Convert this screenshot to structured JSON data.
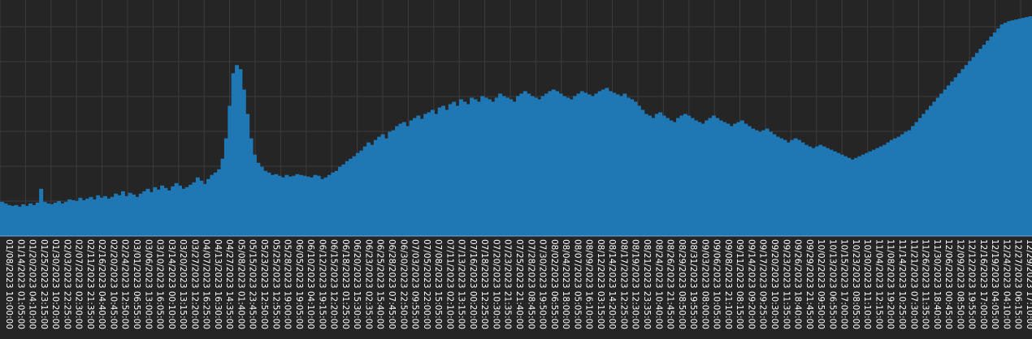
{
  "chart_data": {
    "type": "area",
    "title": "",
    "xlabel": "",
    "ylabel": "",
    "ylim": [
      0,
      290
    ],
    "grid": true,
    "legend": "none",
    "colors": {
      "background": "#252526",
      "grid": "#3c3c3c",
      "fill": "#1f77b4",
      "baseline": "#6fa8dc",
      "text": "#ffffff"
    },
    "x_tick_labels": [
      "01/08/2023 10:00:00",
      "01/14/2023 01:05:00",
      "01/20/2023 04:10:00",
      "01/25/2023 23:15:00",
      "01/30/2023 10:20:00",
      "02/03/2023 22:25:00",
      "02/07/2023 02:30:00",
      "02/11/2023 21:35:00",
      "02/16/2023 04:40:00",
      "02/20/2023 10:45:00",
      "02/24/2023 12:50:00",
      "03/01/2023 06:55:00",
      "03/06/2023 13:00:00",
      "03/10/2023 16:05:00",
      "03/14/2023 00:10:00",
      "03/20/2023 13:15:00",
      "03/27/2023 12:20:00",
      "04/07/2023 16:25:00",
      "04/13/2023 16:30:00",
      "04/27/2023 14:35:00",
      "05/08/2023 01:40:00",
      "05/15/2023 23:45:00",
      "05/23/2023 12:50:00",
      "05/25/2023 12:55:00",
      "05/28/2023 19:00:00",
      "06/05/2023 19:05:00",
      "06/10/2023 04:10:00",
      "06/12/2023 19:15:00",
      "06/15/2023 12:20:00",
      "06/18/2023 01:25:00",
      "06/20/2023 15:30:00",
      "06/23/2023 02:35:00",
      "06/25/2023 15:40:00",
      "06/28/2023 07:45:00",
      "06/30/2023 22:50:00",
      "07/03/2023 09:55:00",
      "07/05/2023 22:00:00",
      "07/08/2023 15:05:00",
      "07/11/2023 02:10:00",
      "07/13/2023 13:15:00",
      "07/16/2023 00:20:00",
      "07/18/2023 12:25:00",
      "07/20/2023 10:30:00",
      "07/23/2023 21:35:00",
      "07/25/2023 21:40:00",
      "07/28/2023 08:45:00",
      "07/30/2023 19:50:00",
      "08/02/2023 06:55:00",
      "08/04/2023 18:00:00",
      "08/07/2023 05:05:00",
      "08/09/2023 16:10:00",
      "08/12/2023 03:15:00",
      "08/14/2023 14:20:00",
      "08/17/2023 12:25:00",
      "08/19/2023 12:30:00",
      "08/21/2023 23:35:00",
      "08/24/2023 10:40:00",
      "08/26/2023 21:45:00",
      "08/29/2023 08:50:00",
      "08/31/2023 19:55:00",
      "09/03/2023 08:00:00",
      "09/06/2023 10:05:00",
      "09/08/2023 21:10:00",
      "09/11/2023 08:15:00",
      "09/14/2023 09:20:00",
      "09/17/2023 09:25:00",
      "09/20/2023 10:30:00",
      "09/23/2023 11:35:00",
      "09/26/2023 18:40:00",
      "09/29/2023 21:45:00",
      "10/02/2023 09:50:00",
      "10/13/2023 06:55:00",
      "10/15/2023 17:00:00",
      "10/23/2023 08:05:00",
      "10/30/2023 11:10:00",
      "11/04/2023 12:15:00",
      "11/08/2023 19:20:00",
      "11/14/2023 10:25:00",
      "11/21/2023 07:30:00",
      "11/26/2023 11:35:00",
      "11/30/2023 18:40:00",
      "12/06/2023 00:45:00",
      "12/09/2023 08:50:00",
      "12/12/2023 19:55:00",
      "12/16/2023 17:00:00",
      "12/19/2023 04:05:00",
      "12/24/2023 04:10:00",
      "12/27/2023 06:15:00",
      "12/29/2023 17:10:00"
    ],
    "series": [
      {
        "values": [
          42,
          40,
          38,
          37,
          38,
          36,
          39,
          37,
          40,
          38,
          41,
          58,
          42,
          40,
          39,
          41,
          43,
          40,
          42,
          45,
          44,
          43,
          47,
          44,
          46,
          48,
          45,
          50,
          47,
          49,
          46,
          48,
          52,
          50,
          55,
          49,
          53,
          51,
          48,
          52,
          55,
          58,
          54,
          60,
          57,
          62,
          59,
          56,
          61,
          65,
          62,
          58,
          60,
          63,
          66,
          72,
          68,
          64,
          70,
          75,
          78,
          82,
          95,
          120,
          160,
          200,
          210,
          205,
          180,
          150,
          120,
          100,
          90,
          85,
          80,
          78,
          75,
          76,
          74,
          72,
          75,
          73,
          74,
          76,
          75,
          74,
          73,
          72,
          75,
          74,
          70,
          72,
          75,
          78,
          80,
          85,
          88,
          92,
          95,
          98,
          102,
          105,
          110,
          115,
          112,
          118,
          122,
          125,
          120,
          128,
          130,
          135,
          138,
          140,
          135,
          142,
          145,
          148,
          144,
          150,
          152,
          155,
          150,
          158,
          160,
          155,
          162,
          165,
          160,
          168,
          165,
          162,
          170,
          168,
          165,
          172,
          170,
          168,
          165,
          170,
          175,
          172,
          170,
          168,
          165,
          172,
          175,
          178,
          175,
          172,
          170,
          168,
          172,
          175,
          178,
          180,
          178,
          175,
          172,
          170,
          168,
          172,
          175,
          178,
          176,
          174,
          172,
          175,
          178,
          180,
          182,
          178,
          176,
          174,
          172,
          175,
          170,
          168,
          165,
          160,
          155,
          150,
          148,
          145,
          150,
          152,
          148,
          145,
          142,
          140,
          145,
          148,
          150,
          148,
          145,
          142,
          140,
          138,
          142,
          145,
          148,
          145,
          142,
          140,
          138,
          135,
          138,
          140,
          142,
          138,
          135,
          132,
          130,
          128,
          130,
          132,
          128,
          125,
          122,
          120,
          118,
          115,
          118,
          120,
          118,
          115,
          112,
          110,
          108,
          110,
          112,
          110,
          108,
          106,
          104,
          102,
          100,
          98,
          96,
          94,
          96,
          98,
          100,
          102,
          104,
          106,
          108,
          110,
          112,
          115,
          118,
          120,
          122,
          125,
          128,
          130,
          135,
          140,
          145,
          150,
          155,
          160,
          165,
          170,
          175,
          180,
          185,
          190,
          195,
          200,
          205,
          210,
          215,
          220,
          225,
          230,
          235,
          240,
          245,
          250,
          255,
          260,
          262,
          264,
          265,
          266,
          267,
          268,
          269,
          270
        ]
      }
    ]
  }
}
